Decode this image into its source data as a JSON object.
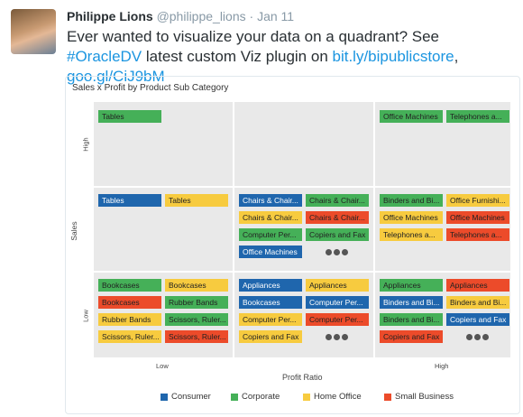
{
  "tweet": {
    "name": "Philippe Lions",
    "handle": "@philippe_lions",
    "date": "Jan 11",
    "text": [
      {
        "text": "Ever wanted to visualize your data on a quadrant? See ",
        "link": false
      },
      {
        "text": "#OracleDV",
        "link": true
      },
      {
        "text": " latest custom Viz plugin on ",
        "link": false
      },
      {
        "text": "bit.ly/bipublicstore",
        "link": true
      },
      {
        "text": ", ",
        "link": false
      },
      {
        "text": "goo.gl/CiJ9bM",
        "link": true
      }
    ]
  },
  "viz": {
    "title": "Sales x Profit by Product Sub Category",
    "y_axis": {
      "title": "Sales",
      "high": "High",
      "low": "Low"
    },
    "x_axis": {
      "title": "Profit Ratio",
      "low": "Low",
      "high": "High"
    },
    "legend": [
      {
        "label": "Consumer",
        "color": "#1f66ad"
      },
      {
        "label": "Corporate",
        "color": "#45b058"
      },
      {
        "label": "Home Office",
        "color": "#f7cb3f"
      },
      {
        "label": "Small Business",
        "color": "#ec4b2a"
      }
    ],
    "cells": [
      {
        "tiles": [
          {
            "label": "Tables",
            "color": "#45b058"
          }
        ],
        "more": false
      },
      {
        "tiles": [],
        "more": false
      },
      {
        "tiles": [
          {
            "label": "Office Machines",
            "color": "#45b058"
          },
          {
            "label": "Telephones a...",
            "color": "#45b058"
          }
        ],
        "more": false
      },
      {
        "tiles": [
          {
            "label": "Tables",
            "color": "#1f66ad"
          },
          {
            "label": "Tables",
            "color": "#f7cb3f"
          }
        ],
        "more": false
      },
      {
        "tiles": [
          {
            "label": "Chairs & Chair...",
            "color": "#1f66ad"
          },
          {
            "label": "Chairs & Chair...",
            "color": "#45b058"
          },
          {
            "label": "Chairs & Chair...",
            "color": "#f7cb3f"
          },
          {
            "label": "Chairs & Chair...",
            "color": "#ec4b2a"
          },
          {
            "label": "Computer Per...",
            "color": "#45b058"
          },
          {
            "label": "Copiers and Fax",
            "color": "#45b058"
          },
          {
            "label": "Office Machines",
            "color": "#1f66ad"
          }
        ],
        "more": true
      },
      {
        "tiles": [
          {
            "label": "Binders and Bi...",
            "color": "#45b058"
          },
          {
            "label": "Office Furnishi...",
            "color": "#f7cb3f"
          },
          {
            "label": "Office Machines",
            "color": "#f7cb3f"
          },
          {
            "label": "Office Machines",
            "color": "#ec4b2a"
          },
          {
            "label": "Telephones a...",
            "color": "#f7cb3f"
          },
          {
            "label": "Telephones a...",
            "color": "#ec4b2a"
          }
        ],
        "more": false
      },
      {
        "tiles": [
          {
            "label": "Bookcases",
            "color": "#45b058"
          },
          {
            "label": "Bookcases",
            "color": "#f7cb3f"
          },
          {
            "label": "Bookcases",
            "color": "#ec4b2a"
          },
          {
            "label": "Rubber Bands",
            "color": "#45b058"
          },
          {
            "label": "Rubber Bands",
            "color": "#f7cb3f"
          },
          {
            "label": "Scissors, Ruler...",
            "color": "#45b058"
          },
          {
            "label": "Scissors, Ruler...",
            "color": "#f7cb3f"
          },
          {
            "label": "Scissors, Ruler...",
            "color": "#ec4b2a"
          }
        ],
        "more": false
      },
      {
        "tiles": [
          {
            "label": "Appliances",
            "color": "#1f66ad"
          },
          {
            "label": "Appliances",
            "color": "#f7cb3f"
          },
          {
            "label": "Bookcases",
            "color": "#1f66ad"
          },
          {
            "label": "Computer Per...",
            "color": "#1f66ad"
          },
          {
            "label": "Computer Per...",
            "color": "#f7cb3f"
          },
          {
            "label": "Computer Per...",
            "color": "#ec4b2a"
          },
          {
            "label": "Copiers and Fax",
            "color": "#f7cb3f"
          }
        ],
        "more": true
      },
      {
        "tiles": [
          {
            "label": "Appliances",
            "color": "#45b058"
          },
          {
            "label": "Appliances",
            "color": "#ec4b2a"
          },
          {
            "label": "Binders and Bi...",
            "color": "#1f66ad"
          },
          {
            "label": "Binders and Bi...",
            "color": "#f7cb3f"
          },
          {
            "label": "Binders and Bi...",
            "color": "#45b058"
          },
          {
            "label": "Copiers and Fax",
            "color": "#1f66ad"
          },
          {
            "label": "Copiers and Fax",
            "color": "#ec4b2a"
          }
        ],
        "more": true
      }
    ]
  }
}
